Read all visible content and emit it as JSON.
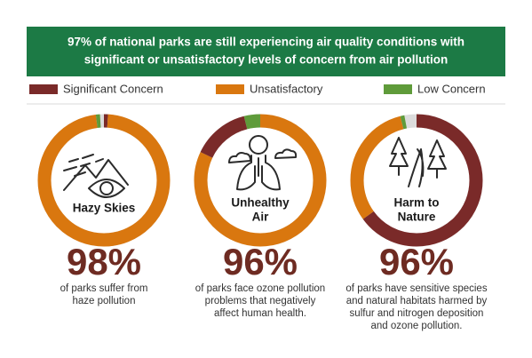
{
  "header": {
    "title": [
      "97% of national parks are still experiencing air quality conditions with",
      "significant or unsatisfactory levels of concern from air pollution"
    ]
  },
  "legend": [
    {
      "name": "Significant Concern",
      "color": "#7a2a29"
    },
    {
      "name": "Unsatisfactory",
      "color": "#d9770f"
    },
    {
      "name": "Low Concern",
      "color": "#5f9b3a"
    }
  ],
  "chart_data": [
    {
      "type": "donut",
      "label": [
        "Hazy Skies"
      ],
      "values": [
        1,
        97,
        1
      ],
      "order": [
        0,
        1,
        2
      ],
      "headline": "98%",
      "caption": [
        "of parks suffer from",
        "haze pollution"
      ]
    },
    {
      "type": "donut",
      "label": [
        "Unhealthy",
        "Air"
      ],
      "values": [
        14,
        82,
        4
      ],
      "order": [
        1,
        0,
        2
      ],
      "headline": "96%",
      "caption": [
        "of parks face ozone pollution",
        "problems that negatively",
        "affect human health."
      ]
    },
    {
      "type": "donut",
      "label": [
        "Harm to",
        "Nature"
      ],
      "values": [
        65,
        31,
        1
      ],
      "order": [
        0,
        1,
        2
      ],
      "headline": "96%",
      "caption": [
        "of parks have sensitive species",
        "and natural habitats harmed by",
        "sulfur and nitrogen deposition",
        "and ozone pollution."
      ]
    }
  ]
}
